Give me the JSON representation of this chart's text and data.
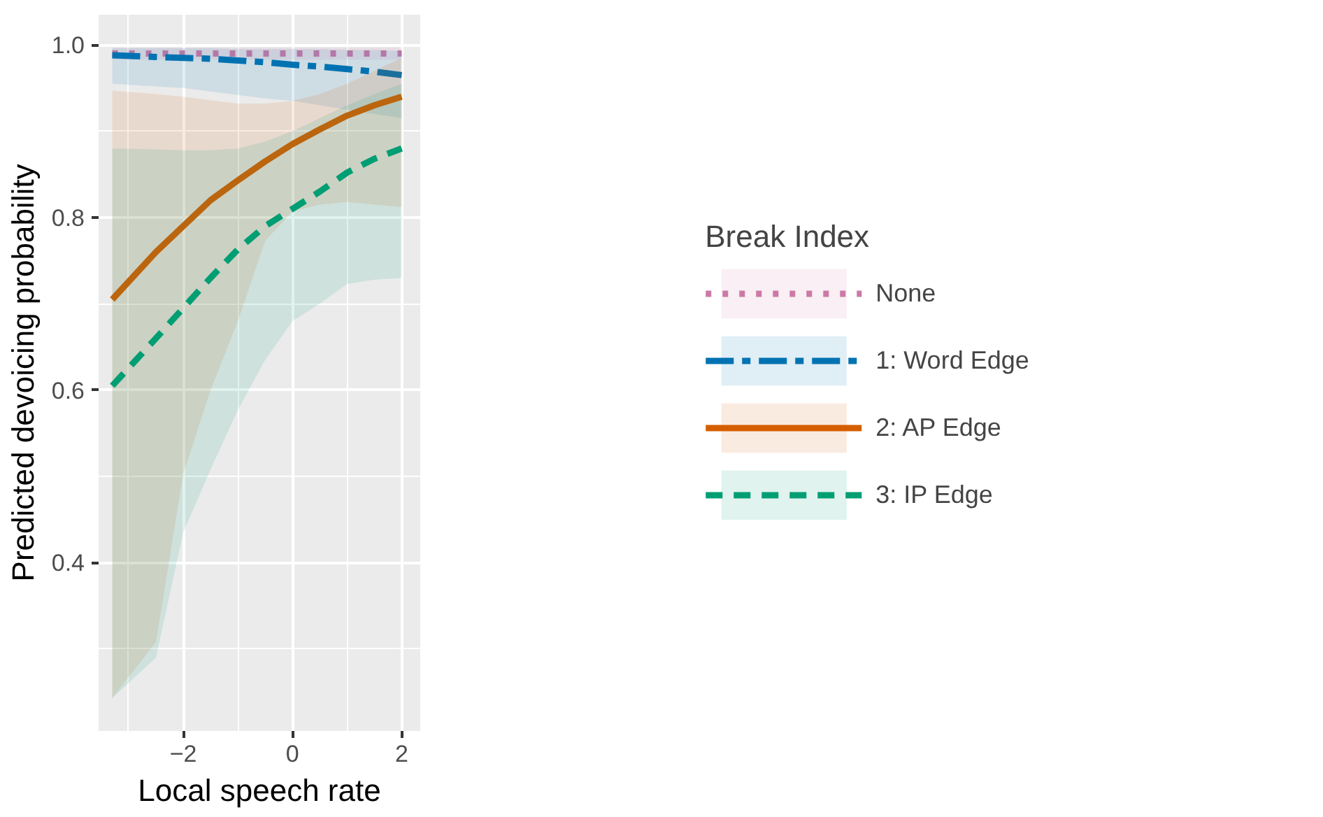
{
  "chart_data": {
    "type": "line",
    "xlabel": "Local speech rate",
    "ylabel": "Predicted devoicing probability",
    "legend_title": "Break Index",
    "x": [
      -3.3,
      -2.5,
      -2,
      -1.5,
      -1,
      -0.5,
      0,
      0.5,
      1,
      1.5,
      2
    ],
    "xlim": [
      -3.55,
      2.34
    ],
    "ylim": [
      0.205,
      1.035
    ],
    "xticks": [
      {
        "value": -2,
        "label": "−2"
      },
      0,
      2
    ],
    "yticks": [
      0.4,
      0.6,
      0.8,
      {
        "value": 1.0,
        "label": "1.0"
      }
    ],
    "grid": true,
    "legend": "right",
    "marker": "none",
    "series": [
      {
        "name": "None",
        "color": "#cc79a7",
        "line_style": "dotted",
        "values": [
          0.99,
          0.99,
          0.99,
          0.99,
          0.99,
          0.99,
          0.99,
          0.99,
          0.99,
          0.99,
          0.99
        ],
        "lower": [
          0.983,
          0.983,
          0.983,
          0.983,
          0.983,
          0.983,
          0.983,
          0.983,
          0.983,
          0.983,
          0.983
        ],
        "upper": [
          0.997,
          0.997,
          0.997,
          0.997,
          0.997,
          0.997,
          0.997,
          0.997,
          0.997,
          0.997,
          0.997
        ]
      },
      {
        "name": "1: Word Edge",
        "color": "#0072b2",
        "line_style": "dashdot",
        "values": [
          0.988,
          0.986,
          0.985,
          0.984,
          0.982,
          0.98,
          0.977,
          0.975,
          0.972,
          0.969,
          0.965
        ],
        "lower": [
          0.955,
          0.952,
          0.95,
          0.946,
          0.942,
          0.938,
          0.935,
          0.93,
          0.925,
          0.92,
          0.915
        ],
        "upper": [
          0.996,
          0.996,
          0.996,
          0.996,
          0.995,
          0.995,
          0.995,
          0.995,
          0.994,
          0.994,
          0.993
        ]
      },
      {
        "name": "2: AP Edge",
        "color": "#d55e00",
        "line_style": "solid",
        "values": [
          0.705,
          0.76,
          0.79,
          0.82,
          0.843,
          0.865,
          0.885,
          0.902,
          0.918,
          0.93,
          0.94
        ],
        "lower": [
          0.243,
          0.308,
          0.503,
          0.6,
          0.68,
          0.773,
          0.807,
          0.815,
          0.818,
          0.815,
          0.812
        ],
        "upper": [
          0.947,
          0.943,
          0.94,
          0.936,
          0.932,
          0.932,
          0.935,
          0.943,
          0.955,
          0.97,
          0.985
        ]
      },
      {
        "name": "3: IP Edge",
        "color": "#009e73",
        "line_style": "dashed",
        "values": [
          0.605,
          0.66,
          0.695,
          0.73,
          0.763,
          0.79,
          0.81,
          0.83,
          0.852,
          0.868,
          0.88
        ],
        "lower": [
          0.243,
          0.29,
          0.435,
          0.508,
          0.577,
          0.635,
          0.68,
          0.7,
          0.723,
          0.728,
          0.73
        ],
        "upper": [
          0.88,
          0.879,
          0.878,
          0.878,
          0.88,
          0.888,
          0.9,
          0.915,
          0.93,
          0.943,
          0.955
        ]
      }
    ]
  }
}
